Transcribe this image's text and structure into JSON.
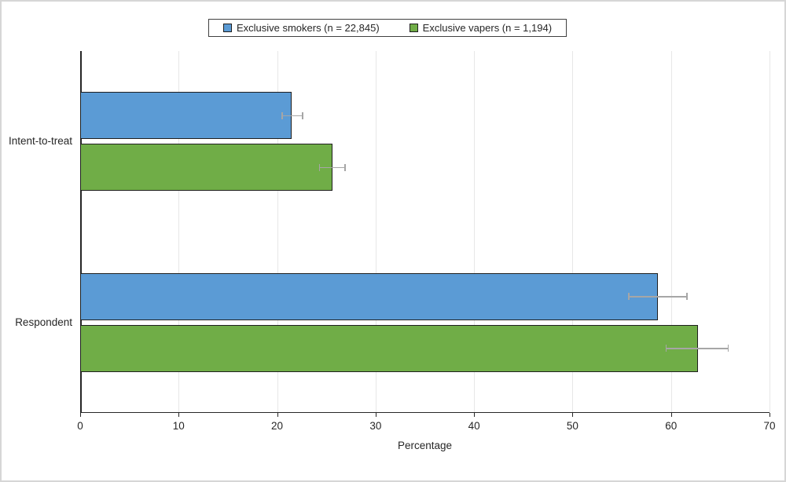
{
  "chart_data": {
    "type": "bar",
    "orientation": "horizontal",
    "title": "",
    "categories": [
      "Intent-to-treat",
      "Respondent"
    ],
    "series": [
      {
        "name": "Exclusive smokers (n = 22,845)",
        "color": "#5B9BD5",
        "values": [
          21.5,
          58.7
        ],
        "error_low": [
          20.5,
          55.7
        ],
        "error_high": [
          22.6,
          61.6
        ]
      },
      {
        "name": "Exclusive vapers (n = 1,194)",
        "color": "#70AD47",
        "values": [
          25.6,
          62.7
        ],
        "error_low": [
          24.3,
          59.5
        ],
        "error_high": [
          26.9,
          65.8
        ]
      }
    ],
    "xlabel": "Percentage",
    "xlim": [
      0,
      70
    ],
    "xticks": [
      0,
      10,
      20,
      30,
      40,
      50,
      60,
      70
    ],
    "grid": "vertical",
    "legend_position": "top-center",
    "colors": {
      "bar_border": "#1F1F1F",
      "error_bar": "#A6A6A6",
      "axis": "#262626",
      "gridline": "#E7E7E7",
      "text": "#262626",
      "legend_border": "#404040",
      "figure_border": "#D6D6D6"
    }
  }
}
